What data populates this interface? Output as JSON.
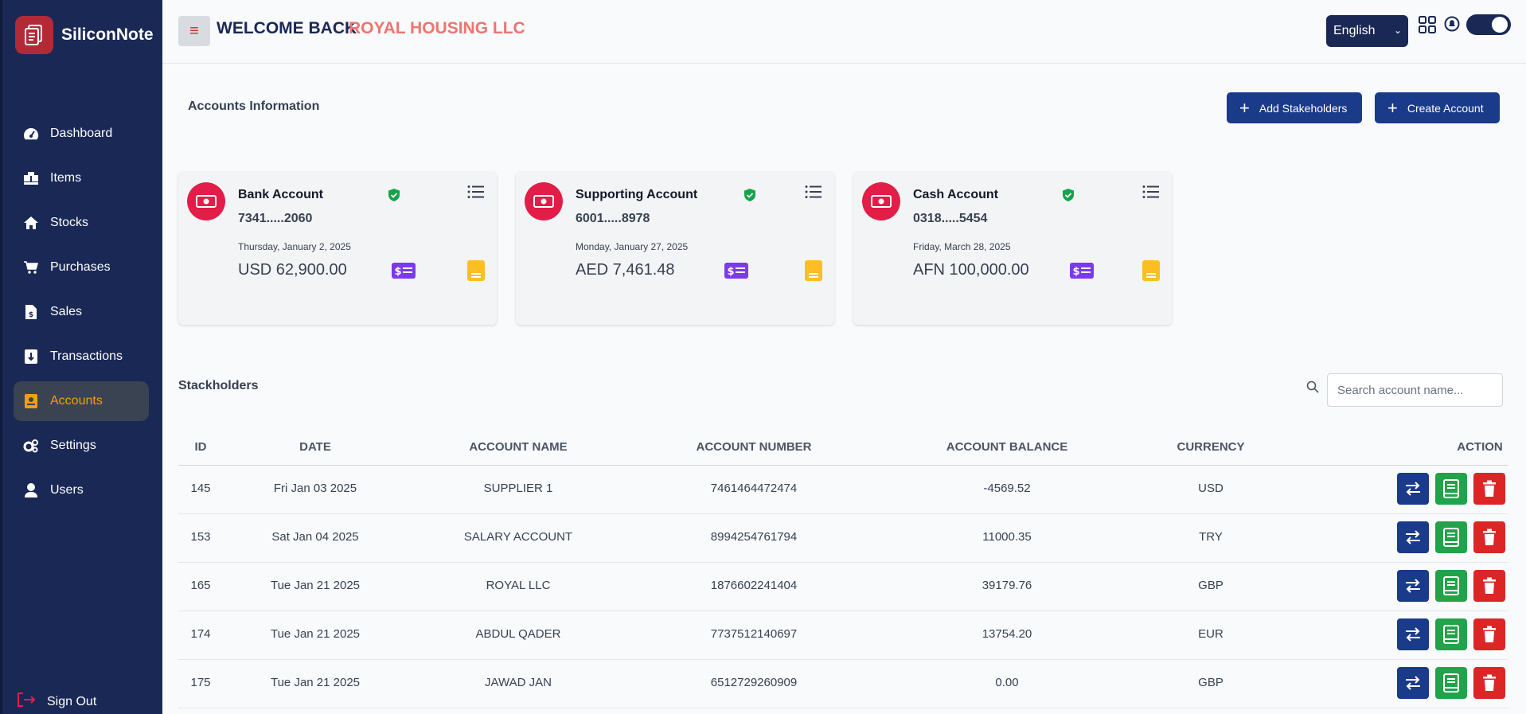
{
  "brand": {
    "name": "SiliconNote"
  },
  "sidebar": {
    "items": [
      {
        "label": "Dashboard",
        "icon": "gauge-icon"
      },
      {
        "label": "Items",
        "icon": "boxes-icon"
      },
      {
        "label": "Stocks",
        "icon": "home-icon"
      },
      {
        "label": "Purchases",
        "icon": "cart-icon"
      },
      {
        "label": "Sales",
        "icon": "invoice-dollar-icon"
      },
      {
        "label": "Transactions",
        "icon": "receipt-icon"
      },
      {
        "label": "Accounts",
        "icon": "ledger-icon",
        "active": true
      },
      {
        "label": "Settings",
        "icon": "gears-icon"
      },
      {
        "label": "Users",
        "icon": "user-icon"
      }
    ],
    "signout": "Sign Out"
  },
  "header": {
    "welcome": "WELCOME BACK",
    "company": "ROYAL HOUSING LLC",
    "language": "English"
  },
  "accounts": {
    "title": "Accounts Information",
    "add_stakeholders": "Add Stakeholders",
    "create_account": "Create Account",
    "cards": [
      {
        "name": "Bank Account",
        "number": "7341.....2060",
        "date": "Thursday, January 2, 2025",
        "balance": "USD 62,900.00"
      },
      {
        "name": "Supporting Account",
        "number": "6001.....8978",
        "date": "Monday, January 27, 2025",
        "balance": "AED 7,461.48"
      },
      {
        "name": "Cash Account",
        "number": "0318.....5454",
        "date": "Friday, March 28, 2025",
        "balance": "AFN 100,000.00"
      }
    ]
  },
  "stakeholders": {
    "title": "Stackholders",
    "search_placeholder": "Search account name...",
    "columns": [
      "ID",
      "DATE",
      "ACCOUNT NAME",
      "ACCOUNT NUMBER",
      "ACCOUNT BALANCE",
      "CURRENCY",
      "ACTION"
    ],
    "rows": [
      {
        "id": "145",
        "date": "Fri Jan 03 2025",
        "name": "SUPPLIER 1",
        "number": "7461464472474",
        "balance": "-4569.52",
        "currency": "USD"
      },
      {
        "id": "153",
        "date": "Sat Jan 04 2025",
        "name": "SALARY ACCOUNT",
        "number": "8994254761794",
        "balance": "11000.35",
        "currency": "TRY"
      },
      {
        "id": "165",
        "date": "Tue Jan 21 2025",
        "name": "ROYAL LLC",
        "number": "1876602241404",
        "balance": "39179.76",
        "currency": "GBP"
      },
      {
        "id": "174",
        "date": "Tue Jan 21 2025",
        "name": "ABDUL QADER",
        "number": "7737512140697",
        "balance": "13754.20",
        "currency": "EUR"
      },
      {
        "id": "175",
        "date": "Tue Jan 21 2025",
        "name": "JAWAD JAN",
        "number": "6512729260909",
        "balance": "0.00",
        "currency": "GBP"
      }
    ]
  },
  "colors": {
    "sidebar": "#1a2856",
    "accent": "#ef7470",
    "active": "#f59e0b",
    "primary": "#1a3a8a",
    "success": "#22a34a",
    "danger": "#dc2626"
  }
}
